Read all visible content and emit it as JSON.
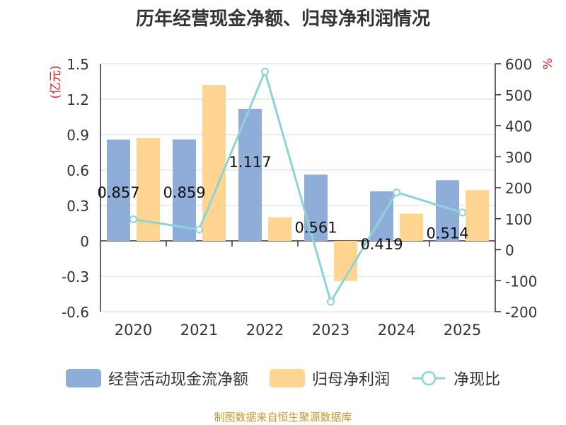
{
  "title": "历年经营现金净额、归母净利润情况",
  "source": "制图数据来自恒生聚源数据库",
  "colors": {
    "cash": "#8eadd8",
    "profit": "#ffd591",
    "ratio": "#8dd3d8",
    "unit_red": "#e02020",
    "grid": "#d9d9d9",
    "axis_text": "#333333"
  },
  "chart_data": {
    "type": "bar",
    "title": "历年经营现金净额、归母净利润情况",
    "categories": [
      "2020",
      "2021",
      "2022",
      "2023",
      "2024",
      "2025"
    ],
    "series": [
      {
        "name": "经营活动现金流净额",
        "type": "bar",
        "axis": "left",
        "values": [
          0.857,
          0.859,
          1.117,
          0.561,
          0.419,
          0.514
        ],
        "labels": [
          "0.857",
          "0.859",
          "1.117",
          "0.561",
          "0.419",
          "0.514"
        ]
      },
      {
        "name": "归母净利润",
        "type": "bar",
        "axis": "left",
        "values": [
          0.87,
          1.32,
          0.2,
          -0.34,
          0.23,
          0.43
        ]
      },
      {
        "name": "净现比",
        "type": "line",
        "axis": "right",
        "values": [
          98,
          65,
          575,
          -168,
          185,
          120
        ]
      }
    ],
    "y_left": {
      "label": "(亿元)",
      "min": -0.6,
      "max": 1.5,
      "ticks": [
        1.5,
        1.2,
        0.9,
        0.6,
        0.3,
        0,
        -0.3,
        -0.6
      ],
      "tick_labels": [
        "1.5",
        "1.2",
        "0.9",
        "0.6",
        "0.3",
        "0",
        "-0.3",
        "-0.6"
      ]
    },
    "y_right": {
      "label": "%",
      "min": -200,
      "max": 600,
      "ticks": [
        600,
        500,
        400,
        300,
        200,
        100,
        0,
        -100,
        -200
      ],
      "tick_labels": [
        "600",
        "500",
        "400",
        "300",
        "200",
        "100",
        "0",
        "-100",
        "-200"
      ]
    },
    "legend": [
      "经营活动现金流净额",
      "归母净利润",
      "净现比"
    ],
    "grid": true,
    "legend_position": "bottom"
  }
}
